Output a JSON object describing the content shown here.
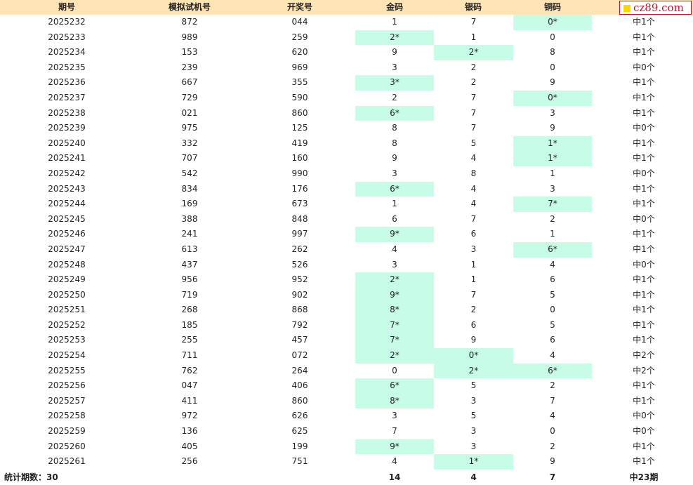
{
  "header": {
    "cols": [
      "期号",
      "模拟试机号",
      "开奖号",
      "金码",
      "银码",
      "铜码"
    ]
  },
  "logo": {
    "text": "cz89.com"
  },
  "rows": [
    {
      "issue": "2025232",
      "sim": "872",
      "draw": "044",
      "gold": "1",
      "silver": "7",
      "copper": "0*",
      "result": "中1个",
      "hit": "copper"
    },
    {
      "issue": "2025233",
      "sim": "989",
      "draw": "259",
      "gold": "2*",
      "silver": "1",
      "copper": "0",
      "result": "中1个",
      "hit": "gold"
    },
    {
      "issue": "2025234",
      "sim": "153",
      "draw": "620",
      "gold": "9",
      "silver": "2*",
      "copper": "8",
      "result": "中1个",
      "hit": "silver"
    },
    {
      "issue": "2025235",
      "sim": "239",
      "draw": "969",
      "gold": "3",
      "silver": "2",
      "copper": "0",
      "result": "中0个",
      "hit": ""
    },
    {
      "issue": "2025236",
      "sim": "667",
      "draw": "355",
      "gold": "3*",
      "silver": "2",
      "copper": "9",
      "result": "中1个",
      "hit": "gold"
    },
    {
      "issue": "2025237",
      "sim": "729",
      "draw": "590",
      "gold": "2",
      "silver": "7",
      "copper": "0*",
      "result": "中1个",
      "hit": "copper"
    },
    {
      "issue": "2025238",
      "sim": "021",
      "draw": "860",
      "gold": "6*",
      "silver": "7",
      "copper": "3",
      "result": "中1个",
      "hit": "gold"
    },
    {
      "issue": "2025239",
      "sim": "975",
      "draw": "125",
      "gold": "8",
      "silver": "7",
      "copper": "9",
      "result": "中0个",
      "hit": ""
    },
    {
      "issue": "2025240",
      "sim": "332",
      "draw": "419",
      "gold": "8",
      "silver": "5",
      "copper": "1*",
      "result": "中1个",
      "hit": "copper"
    },
    {
      "issue": "2025241",
      "sim": "707",
      "draw": "160",
      "gold": "9",
      "silver": "4",
      "copper": "1*",
      "result": "中1个",
      "hit": "copper"
    },
    {
      "issue": "2025242",
      "sim": "542",
      "draw": "990",
      "gold": "3",
      "silver": "8",
      "copper": "1",
      "result": "中0个",
      "hit": ""
    },
    {
      "issue": "2025243",
      "sim": "834",
      "draw": "176",
      "gold": "6*",
      "silver": "4",
      "copper": "3",
      "result": "中1个",
      "hit": "gold"
    },
    {
      "issue": "2025244",
      "sim": "169",
      "draw": "673",
      "gold": "1",
      "silver": "4",
      "copper": "7*",
      "result": "中1个",
      "hit": "copper"
    },
    {
      "issue": "2025245",
      "sim": "388",
      "draw": "848",
      "gold": "6",
      "silver": "7",
      "copper": "2",
      "result": "中0个",
      "hit": ""
    },
    {
      "issue": "2025246",
      "sim": "241",
      "draw": "997",
      "gold": "9*",
      "silver": "6",
      "copper": "1",
      "result": "中1个",
      "hit": "gold"
    },
    {
      "issue": "2025247",
      "sim": "613",
      "draw": "262",
      "gold": "4",
      "silver": "3",
      "copper": "6*",
      "result": "中1个",
      "hit": "copper"
    },
    {
      "issue": "2025248",
      "sim": "437",
      "draw": "526",
      "gold": "3",
      "silver": "1",
      "copper": "4",
      "result": "中0个",
      "hit": ""
    },
    {
      "issue": "2025249",
      "sim": "956",
      "draw": "952",
      "gold": "2*",
      "silver": "1",
      "copper": "6",
      "result": "中1个",
      "hit": "gold"
    },
    {
      "issue": "2025250",
      "sim": "719",
      "draw": "902",
      "gold": "9*",
      "silver": "7",
      "copper": "5",
      "result": "中1个",
      "hit": "gold"
    },
    {
      "issue": "2025251",
      "sim": "268",
      "draw": "868",
      "gold": "8*",
      "silver": "2",
      "copper": "0",
      "result": "中1个",
      "hit": "gold"
    },
    {
      "issue": "2025252",
      "sim": "185",
      "draw": "792",
      "gold": "7*",
      "silver": "6",
      "copper": "5",
      "result": "中1个",
      "hit": "gold"
    },
    {
      "issue": "2025253",
      "sim": "255",
      "draw": "457",
      "gold": "7*",
      "silver": "9",
      "copper": "6",
      "result": "中1个",
      "hit": "gold"
    },
    {
      "issue": "2025254",
      "sim": "711",
      "draw": "072",
      "gold": "2*",
      "silver": "0*",
      "copper": "4",
      "result": "中2个",
      "hit": "gold,silver"
    },
    {
      "issue": "2025255",
      "sim": "762",
      "draw": "264",
      "gold": "0",
      "silver": "2*",
      "copper": "6*",
      "result": "中2个",
      "hit": "silver,copper"
    },
    {
      "issue": "2025256",
      "sim": "047",
      "draw": "406",
      "gold": "6*",
      "silver": "5",
      "copper": "2",
      "result": "中1个",
      "hit": "gold"
    },
    {
      "issue": "2025257",
      "sim": "411",
      "draw": "860",
      "gold": "8*",
      "silver": "3",
      "copper": "7",
      "result": "中1个",
      "hit": "gold"
    },
    {
      "issue": "2025258",
      "sim": "972",
      "draw": "626",
      "gold": "3",
      "silver": "5",
      "copper": "4",
      "result": "中0个",
      "hit": ""
    },
    {
      "issue": "2025259",
      "sim": "136",
      "draw": "625",
      "gold": "7",
      "silver": "3",
      "copper": "0",
      "result": "中0个",
      "hit": ""
    },
    {
      "issue": "2025260",
      "sim": "405",
      "draw": "199",
      "gold": "9*",
      "silver": "3",
      "copper": "2",
      "result": "中1个",
      "hit": "gold"
    },
    {
      "issue": "2025261",
      "sim": "256",
      "draw": "751",
      "gold": "4",
      "silver": "1*",
      "copper": "9",
      "result": "中1个",
      "hit": "silver"
    }
  ],
  "footer": {
    "label": "统计期数：30",
    "gold": "14",
    "silver": "4",
    "copper": "7",
    "result": "中23期"
  },
  "colors": {
    "header_bg": "#ffe4b5",
    "hit_bg": "#c7fce7",
    "logo_red": "#c8102e",
    "logo_yellow": "#ffd400"
  }
}
